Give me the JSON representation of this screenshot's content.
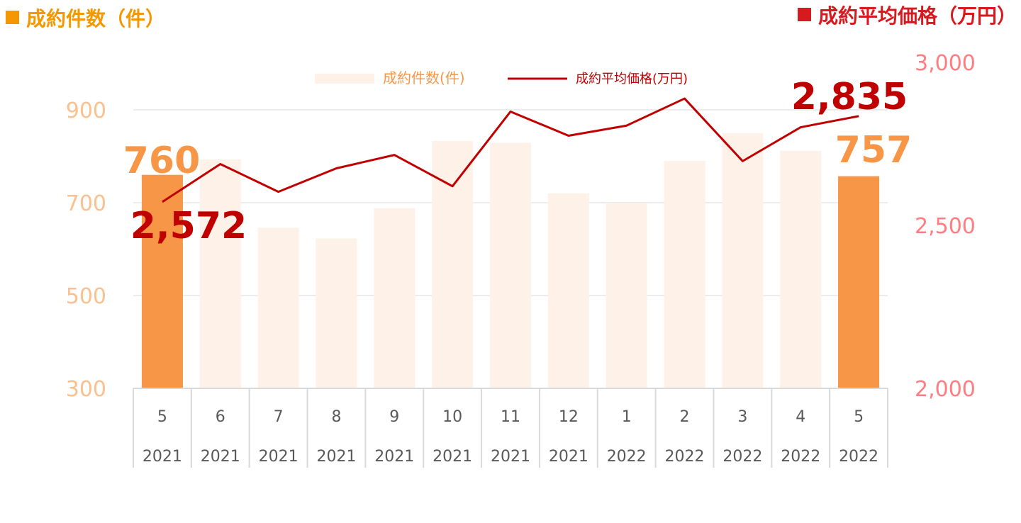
{
  "headers": {
    "left": {
      "text": "成約件数（件）",
      "color": "#F39800"
    },
    "right": {
      "text": "成約平均価格（万円）",
      "color": "#D71920"
    }
  },
  "legend": {
    "bars_label": "成約件数(件)",
    "line_label": "成約平均価格(万円)"
  },
  "colors": {
    "bar_highlight": "#F79646",
    "bar_light": "#FDF1E8",
    "line": "#C00000",
    "left_axis_text": "#FAC090",
    "right_axis_text": "#FF7C80",
    "tick_text": "#595959",
    "grid": "#D9D9D9",
    "callout_orange": "#F79646",
    "callout_red": "#C00000"
  },
  "chart_data": {
    "type": "bar",
    "categories": [
      {
        "month": "5",
        "year": "2021"
      },
      {
        "month": "6",
        "year": "2021"
      },
      {
        "month": "7",
        "year": "2021"
      },
      {
        "month": "8",
        "year": "2021"
      },
      {
        "month": "9",
        "year": "2021"
      },
      {
        "month": "10",
        "year": "2021"
      },
      {
        "month": "11",
        "year": "2021"
      },
      {
        "month": "12",
        "year": "2021"
      },
      {
        "month": "1",
        "year": "2022"
      },
      {
        "month": "2",
        "year": "2022"
      },
      {
        "month": "3",
        "year": "2022"
      },
      {
        "month": "4",
        "year": "2022"
      },
      {
        "month": "5",
        "year": "2022"
      }
    ],
    "series": [
      {
        "name": "成約件数(件)",
        "type": "bar",
        "axis": "left",
        "values": [
          760,
          793,
          646,
          623,
          688,
          833,
          829,
          720,
          700,
          790,
          850,
          812,
          757
        ],
        "highlight": [
          true,
          false,
          false,
          false,
          false,
          false,
          false,
          false,
          false,
          false,
          false,
          false,
          true
        ]
      },
      {
        "name": "成約平均価格(万円)",
        "type": "line",
        "axis": "right",
        "values": [
          2572,
          2688,
          2603,
          2675,
          2716,
          2620,
          2849,
          2775,
          2806,
          2889,
          2697,
          2801,
          2835
        ]
      }
    ],
    "left_axis": {
      "min": 300,
      "max": 1000,
      "ticks": [
        "300",
        "500",
        "700",
        "900"
      ],
      "tick_values": [
        300,
        500,
        700,
        900
      ]
    },
    "right_axis": {
      "min": 2000,
      "max": 3000,
      "ticks": [
        "2,000",
        "2,500",
        "3,000"
      ],
      "tick_values": [
        2000,
        2500,
        3000
      ]
    },
    "grid": true,
    "legend_position": "top-center",
    "annotations": {
      "first_bar": "760",
      "last_bar": "757",
      "first_line": "2,572",
      "last_line": "2,835"
    }
  }
}
